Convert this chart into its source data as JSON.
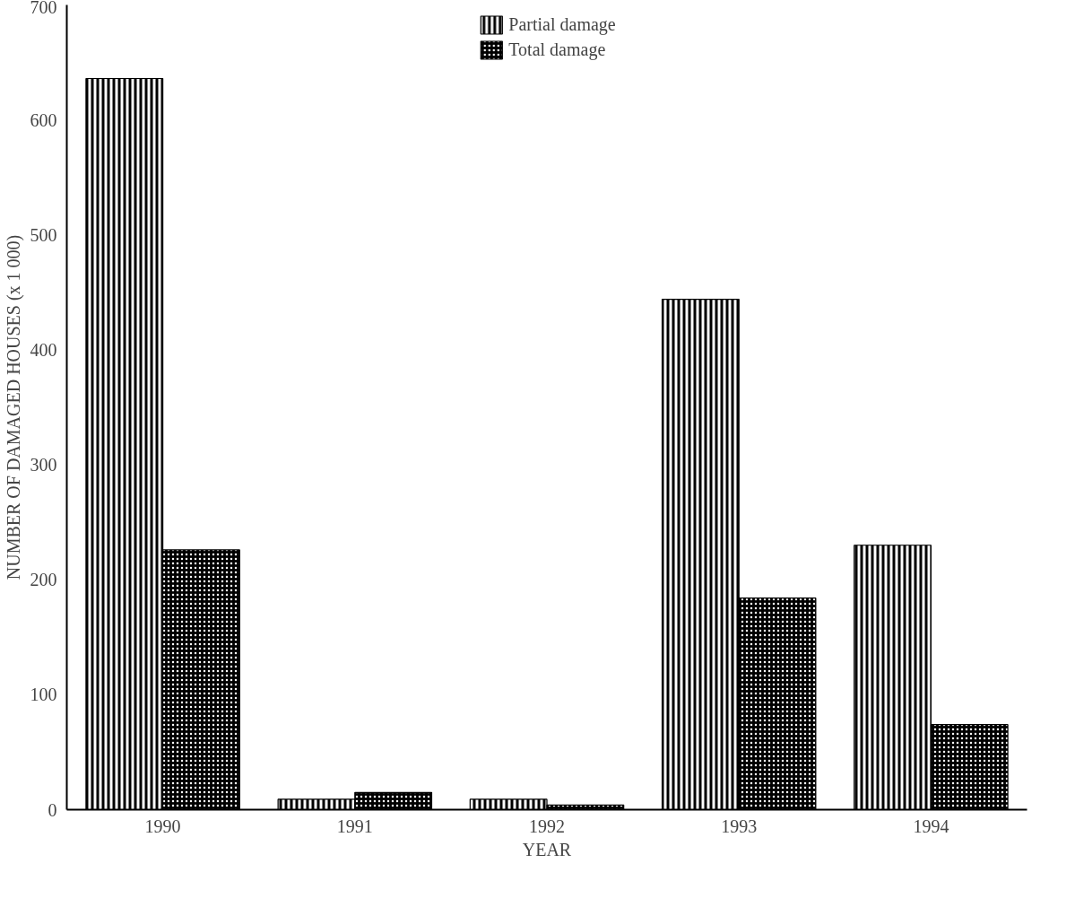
{
  "chart_data": {
    "type": "bar",
    "xlabel": "YEAR",
    "ylabel": "NUMBER OF DAMAGED HOUSES (x 1 000)",
    "categories": [
      "1990",
      "1991",
      "1992",
      "1993",
      "1994"
    ],
    "series": [
      {
        "name": "Partial damage",
        "color": "#000000",
        "values": [
          636,
          9,
          9,
          444,
          230
        ]
      },
      {
        "name": "Total damage",
        "color": "#000000",
        "values": [
          226,
          15,
          4,
          184,
          74
        ]
      }
    ],
    "ylim": [
      0,
      700
    ],
    "yticks": [
      0,
      100,
      200,
      300,
      400,
      500,
      600,
      700
    ],
    "grid": false,
    "legend": "top"
  }
}
